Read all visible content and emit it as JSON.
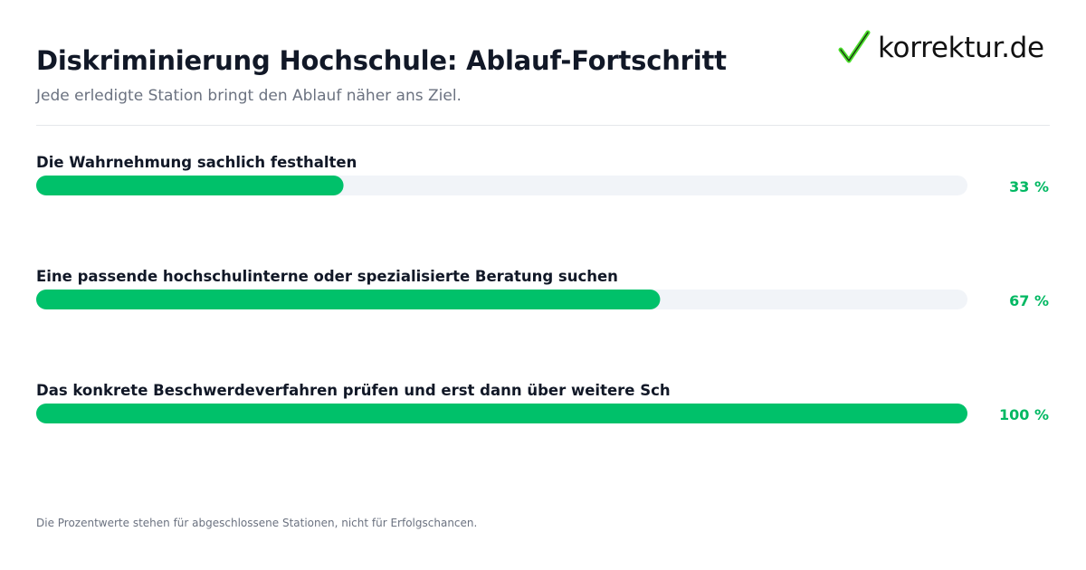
{
  "title": "Diskriminierung Hochschule: Ablauf-Fortschritt",
  "subtitle": "Jede erledigte Station bringt den Ablauf näher ans Ziel.",
  "logo": {
    "text": "korrektur.de",
    "icon": "checkmark-icon",
    "icon_color": "#4ade2a"
  },
  "footnote": "Die Prozentwerte stehen für abgeschlossene Stationen, nicht für Erfolgschancen.",
  "colors": {
    "bar_fill": "#00c16a",
    "bar_track": "#f1f4f8",
    "value_text": "#00b862",
    "label_text": "#111827"
  },
  "chart_data": {
    "type": "bar",
    "orientation": "horizontal",
    "categories": [
      "Die Wahrnehmung sachlich festhalten",
      "Eine passende hochschulinterne oder spezialisierte Beratung suchen",
      "Das konkrete Beschwerdeverfahren prüfen und erst dann über weitere Sch"
    ],
    "values": [
      33,
      67,
      100
    ],
    "value_labels": [
      "33 %",
      "67 %",
      "100 %"
    ],
    "xlim": [
      0,
      100
    ],
    "title": "Diskriminierung Hochschule: Ablauf-Fortschritt",
    "grid": false
  }
}
